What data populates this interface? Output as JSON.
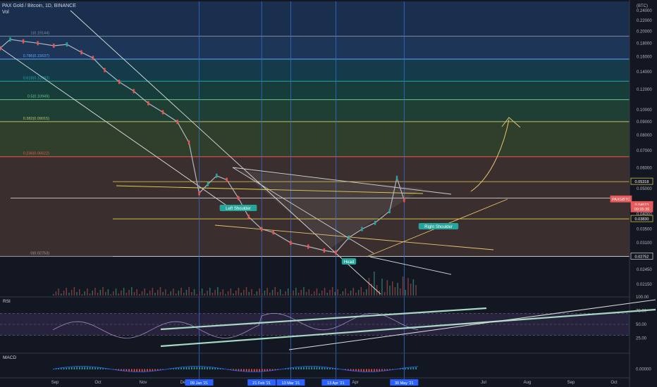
{
  "header": {
    "symbol_line": "PAX Gold / Bitcoin, 1D, BINANCE",
    "vol_label": "Vol",
    "currency_badge": "BTC"
  },
  "main_axis": {
    "scale": "log",
    "ticks": [
      "0.24000",
      "0.22000",
      "0.20000",
      "0.18000",
      "0.16000",
      "0.14000",
      "0.12000",
      "0.10000",
      "0.09000",
      "0.08000",
      "0.07000",
      "0.06000",
      "0.05000",
      "0.04000",
      "0.03500",
      "0.03100",
      "0.02750",
      "0.02450",
      "0.02150"
    ]
  },
  "price_tags": [
    {
      "text": "0.05318",
      "color": "#ffffff",
      "border": "#e6d34a"
    },
    {
      "text": "0.04602",
      "color": "#ffffff",
      "border": "#d0d0d0"
    },
    {
      "text": "PAXGBTC",
      "color": "#e65a5a",
      "border": "#e65a5a"
    },
    {
      "text": "0.04523",
      "color": "#e65a5a",
      "border": "#e65a5a"
    },
    {
      "text": "09:35:39",
      "color": "#e65a5a",
      "border": "#e65a5a"
    },
    {
      "text": "0.03830",
      "color": "#ffffff",
      "border": "#e6d34a"
    },
    {
      "text": "0.02752",
      "color": "#ffffff",
      "border": "#cfcfcf"
    }
  ],
  "fib_levels": [
    {
      "label": "1(0.19144)",
      "value": 0.19144,
      "color": "#7f8ba1"
    },
    {
      "label": "0.786(0.15637)",
      "value": 0.15637,
      "color": "#5ea7ff"
    },
    {
      "label": "0.618(0.12883)",
      "value": 0.12883,
      "color": "#26a69a"
    },
    {
      "label": "0.5(0.10949)",
      "value": 0.10949,
      "color": "#6cc28b"
    },
    {
      "label": "0.382(0.09015)",
      "value": 0.09015,
      "color": "#b9c46a"
    },
    {
      "label": "0.236(0.06622)",
      "value": 0.06622,
      "color": "#ef5350"
    },
    {
      "label": "0(0.02753)",
      "value": 0.02753,
      "color": "#9e9e9e"
    }
  ],
  "pattern_labels": [
    {
      "text": "Left Shoulder"
    },
    {
      "text": "Head"
    },
    {
      "text": "Right Shoulder"
    }
  ],
  "time_axis": {
    "labels": [
      "Sep",
      "Oct",
      "Nov",
      "Dec",
      "Feb",
      "Apr",
      "May",
      "Jul",
      "Aug",
      "Sep",
      "Oct"
    ],
    "highlighted": [
      "09 Jan '21",
      "21 Feb '21",
      "13 Mar '21",
      "13 Apr '21",
      "30 May '21"
    ]
  },
  "rsi_panel": {
    "label": "RSI",
    "ticks": [
      "100.00",
      "75.00",
      "50.00",
      "25.00"
    ]
  },
  "macd_panel": {
    "label": "MACD",
    "ticks": [
      "0.00000"
    ]
  },
  "chart_data": {
    "type": "candlestick",
    "symbol": "PAXGBTC",
    "exchange": "BINANCE",
    "timeframe": "1D",
    "y_scale": "log",
    "ylim": [
      0.0195,
      0.26
    ],
    "x_range": [
      "2020-08-25",
      "2021-11-01"
    ],
    "close_path": [
      [
        "2020-08-25",
        0.172
      ],
      [
        "2020-09-01",
        0.186
      ],
      [
        "2020-09-10",
        0.183
      ],
      [
        "2020-09-20",
        0.18
      ],
      [
        "2020-10-01",
        0.176
      ],
      [
        "2020-10-10",
        0.178
      ],
      [
        "2020-10-20",
        0.166
      ],
      [
        "2020-10-28",
        0.158
      ],
      [
        "2020-11-05",
        0.142
      ],
      [
        "2020-11-15",
        0.128
      ],
      [
        "2020-11-25",
        0.118
      ],
      [
        "2020-12-05",
        0.106
      ],
      [
        "2020-12-15",
        0.098
      ],
      [
        "2020-12-25",
        0.09
      ],
      [
        "2021-01-02",
        0.075
      ],
      [
        "2021-01-09",
        0.048
      ],
      [
        "2021-01-15",
        0.052
      ],
      [
        "2021-01-21",
        0.056
      ],
      [
        "2021-01-28",
        0.054
      ],
      [
        "2021-02-05",
        0.046
      ],
      [
        "2021-02-12",
        0.039
      ],
      [
        "2021-02-21",
        0.035
      ],
      [
        "2021-03-01",
        0.034
      ],
      [
        "2021-03-13",
        0.031
      ],
      [
        "2021-03-25",
        0.03
      ],
      [
        "2021-04-05",
        0.029
      ],
      [
        "2021-04-13",
        0.0285
      ],
      [
        "2021-04-22",
        0.0325
      ],
      [
        "2021-05-01",
        0.035
      ],
      [
        "2021-05-10",
        0.037
      ],
      [
        "2021-05-20",
        0.041
      ],
      [
        "2021-05-25",
        0.055
      ],
      [
        "2021-05-30",
        0.0452
      ]
    ],
    "current_price": 0.04523,
    "horizontal_levels": [
      {
        "value": 0.05318,
        "color": "#e6d34a"
      },
      {
        "value": 0.04602,
        "color": "#d0d0d0"
      },
      {
        "value": 0.0383,
        "color": "#e6d34a"
      },
      {
        "value": 0.02752,
        "color": "#cfcfcf"
      }
    ],
    "vertical_markers": [
      "2021-01-09",
      "2021-02-21",
      "2021-03-13",
      "2021-04-13",
      "2021-05-30"
    ],
    "rsi": {
      "range": [
        0,
        100
      ],
      "levels": [
        70,
        50,
        30
      ]
    },
    "macd": {
      "zero": 0.0
    }
  }
}
